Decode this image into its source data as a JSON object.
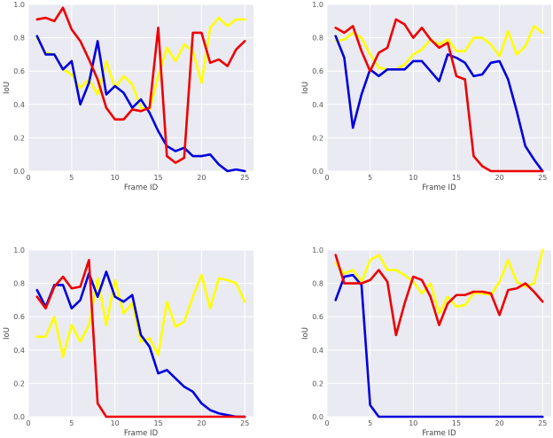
{
  "chart_data": [
    {
      "type": "line",
      "title": "",
      "xlabel": "Frame ID",
      "ylabel": "IoU",
      "xlim": [
        0,
        26
      ],
      "ylim": [
        0,
        1.0
      ],
      "xticks": [
        0,
        5,
        10,
        15,
        20,
        25
      ],
      "yticks": [
        0.0,
        0.2,
        0.4,
        0.6,
        0.8,
        1.0
      ],
      "x": [
        1,
        2,
        3,
        4,
        5,
        6,
        7,
        8,
        9,
        10,
        11,
        12,
        13,
        14,
        15,
        16,
        17,
        18,
        19,
        20,
        21,
        22,
        23,
        24,
        25
      ],
      "series": [
        {
          "name": "yellow",
          "color": "#ffff00",
          "values": [
            0.8,
            0.71,
            0.7,
            0.61,
            0.58,
            0.5,
            0.55,
            0.46,
            0.66,
            0.5,
            0.57,
            0.52,
            0.38,
            0.37,
            0.57,
            0.74,
            0.66,
            0.76,
            0.72,
            0.53,
            0.86,
            0.92,
            0.87,
            0.91,
            0.91
          ]
        },
        {
          "name": "blue",
          "color": "#0000dd",
          "values": [
            0.81,
            0.7,
            0.7,
            0.61,
            0.66,
            0.4,
            0.53,
            0.78,
            0.46,
            0.51,
            0.47,
            0.38,
            0.43,
            0.35,
            0.24,
            0.15,
            0.12,
            0.14,
            0.09,
            0.09,
            0.1,
            0.04,
            0.0,
            0.01,
            0.0
          ]
        },
        {
          "name": "red",
          "color": "#ee0000",
          "values": [
            0.91,
            0.92,
            0.9,
            0.98,
            0.85,
            0.78,
            0.67,
            0.55,
            0.38,
            0.31,
            0.31,
            0.37,
            0.36,
            0.38,
            0.86,
            0.09,
            0.05,
            0.08,
            0.83,
            0.83,
            0.65,
            0.67,
            0.63,
            0.73,
            0.78
          ]
        }
      ]
    },
    {
      "type": "line",
      "title": "",
      "xlabel": "Frame ID",
      "ylabel": "IoU",
      "xlim": [
        0,
        26
      ],
      "ylim": [
        0,
        1.0
      ],
      "xticks": [
        0,
        5,
        10,
        15,
        20,
        25
      ],
      "yticks": [
        0.0,
        0.2,
        0.4,
        0.6,
        0.8,
        1.0
      ],
      "x": [
        1,
        2,
        3,
        4,
        5,
        6,
        7,
        8,
        9,
        10,
        11,
        12,
        13,
        14,
        15,
        16,
        17,
        18,
        19,
        20,
        21,
        22,
        23,
        24,
        25
      ],
      "series": [
        {
          "name": "yellow",
          "color": "#ffff00",
          "values": [
            0.78,
            0.79,
            0.83,
            0.8,
            0.7,
            0.62,
            0.61,
            0.61,
            0.64,
            0.7,
            0.73,
            0.79,
            0.76,
            0.79,
            0.72,
            0.72,
            0.8,
            0.8,
            0.76,
            0.69,
            0.84,
            0.7,
            0.75,
            0.87,
            0.83
          ]
        },
        {
          "name": "blue",
          "color": "#0000dd",
          "values": [
            0.81,
            0.68,
            0.26,
            0.46,
            0.61,
            0.57,
            0.61,
            0.61,
            0.61,
            0.66,
            0.66,
            0.6,
            0.54,
            0.7,
            0.68,
            0.65,
            0.57,
            0.58,
            0.65,
            0.66,
            0.55,
            0.36,
            0.15,
            0.07,
            0.0
          ]
        },
        {
          "name": "red",
          "color": "#ee0000",
          "values": [
            0.86,
            0.83,
            0.87,
            0.72,
            0.6,
            0.71,
            0.74,
            0.91,
            0.88,
            0.8,
            0.86,
            0.79,
            0.74,
            0.77,
            0.57,
            0.55,
            0.09,
            0.03,
            0.0,
            0.0,
            0.0,
            0.0,
            0.0,
            0.0,
            0.0
          ]
        }
      ]
    },
    {
      "type": "line",
      "title": "",
      "xlabel": "Frame ID",
      "ylabel": "IoU",
      "xlim": [
        0,
        26
      ],
      "ylim": [
        0,
        1.0
      ],
      "xticks": [
        0,
        5,
        10,
        15,
        20,
        25
      ],
      "yticks": [
        0.0,
        0.2,
        0.4,
        0.6,
        0.8,
        1.0
      ],
      "x": [
        1,
        2,
        3,
        4,
        5,
        6,
        7,
        8,
        9,
        10,
        11,
        12,
        13,
        14,
        15,
        16,
        17,
        18,
        19,
        20,
        21,
        22,
        23,
        24,
        25
      ],
      "series": [
        {
          "name": "yellow",
          "color": "#ffff00",
          "values": [
            0.48,
            0.48,
            0.6,
            0.36,
            0.55,
            0.45,
            0.55,
            0.83,
            0.55,
            0.82,
            0.62,
            0.68,
            0.45,
            0.47,
            0.37,
            0.69,
            0.54,
            0.57,
            0.72,
            0.85,
            0.65,
            0.83,
            0.82,
            0.8,
            0.69
          ]
        },
        {
          "name": "blue",
          "color": "#0000dd",
          "values": [
            0.76,
            0.66,
            0.79,
            0.79,
            0.65,
            0.7,
            0.86,
            0.72,
            0.87,
            0.72,
            0.69,
            0.73,
            0.49,
            0.42,
            0.26,
            0.28,
            0.23,
            0.18,
            0.15,
            0.08,
            0.04,
            0.02,
            0.01,
            0.0,
            0.0
          ]
        },
        {
          "name": "red",
          "color": "#ee0000",
          "values": [
            0.72,
            0.65,
            0.78,
            0.84,
            0.77,
            0.78,
            0.94,
            0.08,
            0.0,
            0.0,
            0.0,
            0.0,
            0.0,
            0.0,
            0.0,
            0.0,
            0.0,
            0.0,
            0.0,
            0.0,
            0.0,
            0.0,
            0.0,
            0.0,
            0.0
          ]
        }
      ]
    },
    {
      "type": "line",
      "title": "",
      "xlabel": "Frame ID",
      "ylabel": "IoU",
      "xlim": [
        0,
        26
      ],
      "ylim": [
        0,
        1.0
      ],
      "xticks": [
        0,
        5,
        10,
        15,
        20,
        25
      ],
      "yticks": [
        0.0,
        0.2,
        0.4,
        0.6,
        0.8,
        1.0
      ],
      "x": [
        1,
        2,
        3,
        4,
        5,
        6,
        7,
        8,
        9,
        10,
        11,
        12,
        13,
        14,
        15,
        16,
        17,
        18,
        19,
        20,
        21,
        22,
        23,
        24,
        25
      ],
      "series": [
        {
          "name": "yellow",
          "color": "#ffff00",
          "values": [
            0.92,
            0.86,
            0.88,
            0.81,
            0.94,
            0.97,
            0.88,
            0.88,
            0.85,
            0.81,
            0.74,
            0.8,
            0.62,
            0.72,
            0.66,
            0.67,
            0.74,
            0.74,
            0.73,
            0.81,
            0.94,
            0.81,
            0.78,
            0.8,
            1.0
          ]
        },
        {
          "name": "blue",
          "color": "#0000dd",
          "values": [
            0.7,
            0.84,
            0.85,
            0.79,
            0.07,
            0.0,
            0.0,
            0.0,
            0.0,
            0.0,
            0.0,
            0.0,
            0.0,
            0.0,
            0.0,
            0.0,
            0.0,
            0.0,
            0.0,
            0.0,
            0.0,
            0.0,
            0.0,
            0.0,
            0.0
          ]
        },
        {
          "name": "red",
          "color": "#ee0000",
          "values": [
            0.97,
            0.8,
            0.8,
            0.8,
            0.82,
            0.88,
            0.81,
            0.49,
            0.68,
            0.84,
            0.82,
            0.72,
            0.55,
            0.68,
            0.73,
            0.73,
            0.75,
            0.75,
            0.74,
            0.61,
            0.76,
            0.77,
            0.8,
            0.75,
            0.69
          ]
        }
      ]
    }
  ]
}
